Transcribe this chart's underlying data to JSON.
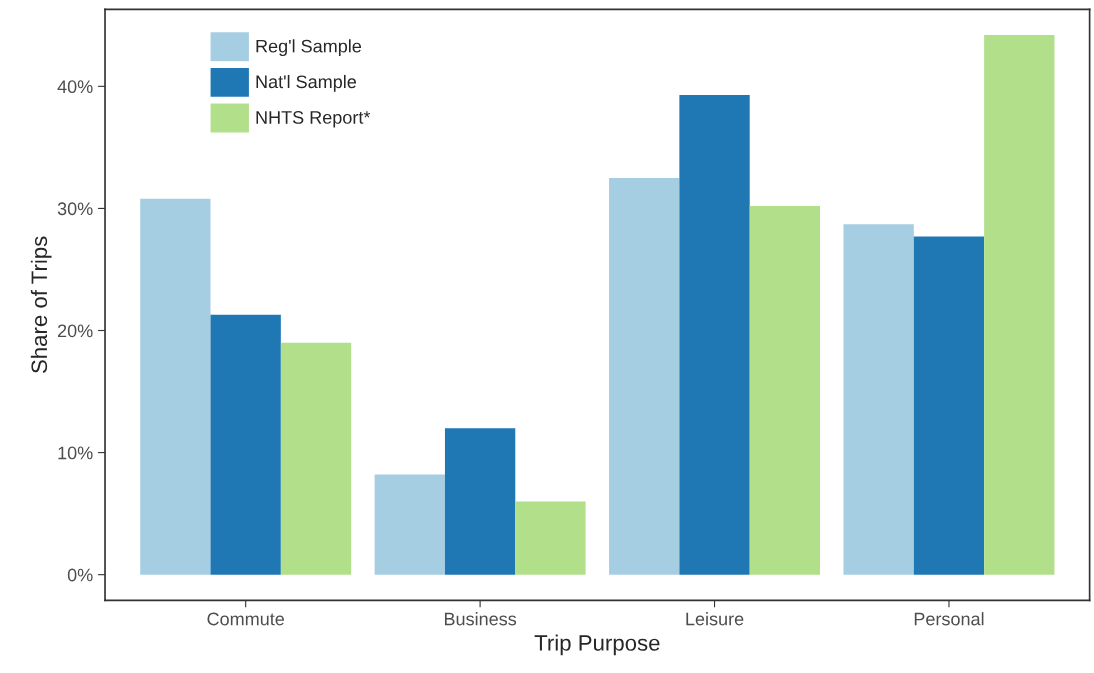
{
  "chart_data": {
    "type": "bar",
    "xlabel": "Trip Purpose",
    "ylabel": "Share of Trips",
    "categories": [
      "Commute",
      "Business",
      "Leisure",
      "Personal"
    ],
    "series": [
      {
        "name": "Reg'l Sample",
        "color": "#a6cee3",
        "values": [
          30.8,
          8.2,
          32.5,
          28.7
        ]
      },
      {
        "name": "Nat'l Sample",
        "color": "#1f78b4",
        "values": [
          21.3,
          12.0,
          39.3,
          27.7
        ]
      },
      {
        "name": "NHTS Report*",
        "color": "#b2df8a",
        "values": [
          19.0,
          6.0,
          30.2,
          44.2
        ]
      }
    ],
    "ylim": [
      -2.1,
      46.3
    ],
    "yticks": [
      {
        "value": 0,
        "label": "0%"
      },
      {
        "value": 10,
        "label": "10%"
      },
      {
        "value": 20,
        "label": "20%"
      },
      {
        "value": 30,
        "label": "30%"
      },
      {
        "value": 40,
        "label": "40%"
      }
    ],
    "grid": false,
    "legend": "top left"
  }
}
